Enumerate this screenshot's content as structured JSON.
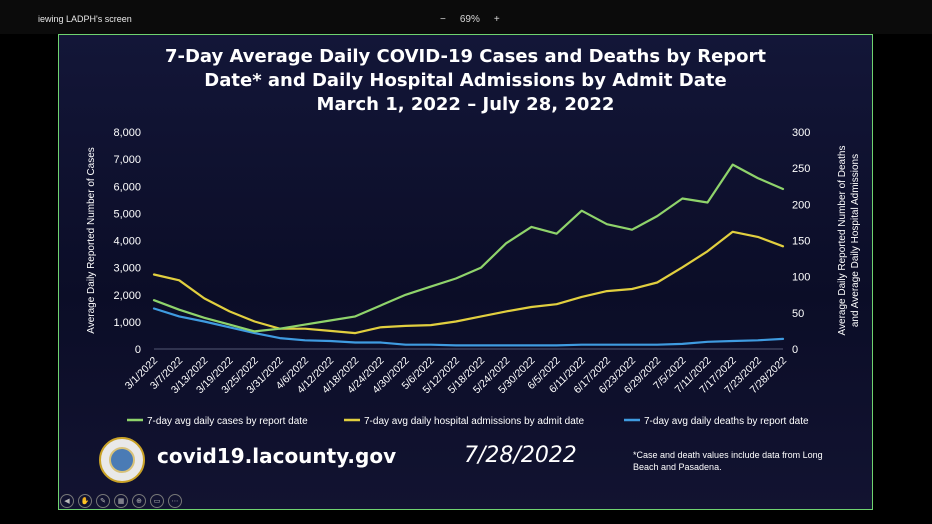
{
  "share_bar": {
    "label": "iewing LADPH's screen",
    "zoom_minus": "−",
    "zoom_level": "69%",
    "zoom_plus": "+"
  },
  "slide": {
    "title_line1": "7-Day Average Daily COVID-19 Cases and Deaths by Report",
    "title_line2": "Date* and Daily Hospital Admissions by Admit Date",
    "title_line3": "March 1, 2022 – July 28, 2022",
    "website": "covid19.lacounty.gov",
    "date": "7/28/2022",
    "footnote": "*Case and death values include data from Long Beach and Pasadena."
  },
  "colors": {
    "cases": "#8fd36b",
    "admissions": "#e1cf3f",
    "deaths": "#3f9be0",
    "axis_text": "#ffffff",
    "background": "#0d0f2c",
    "border": "#6fd36f"
  },
  "chart_data": {
    "type": "line",
    "x": [
      "3/1/2022",
      "3/7/2022",
      "3/13/2022",
      "3/19/2022",
      "3/25/2022",
      "3/31/2022",
      "4/6/2022",
      "4/12/2022",
      "4/18/2022",
      "4/24/2022",
      "4/30/2022",
      "5/6/2022",
      "5/12/2022",
      "5/18/2022",
      "5/24/2022",
      "5/30/2022",
      "6/5/2022",
      "6/11/2022",
      "6/17/2022",
      "6/23/2022",
      "6/29/2022",
      "7/5/2022",
      "7/11/2022",
      "7/17/2022",
      "7/23/2022",
      "7/28/2022"
    ],
    "left_axis": {
      "label": "Average Daily Reported Number of Cases",
      "ticks": [
        "0",
        "1,000",
        "2,000",
        "3,000",
        "4,000",
        "5,000",
        "6,000",
        "7,000",
        "8,000"
      ],
      "range": [
        0,
        8000
      ]
    },
    "right_axis": {
      "label_line1": "Average Daily Reported Number of Deaths",
      "label_line2": "and Average Daily Hospital Admissions",
      "ticks": [
        "0",
        "50",
        "100",
        "150",
        "200",
        "250",
        "300"
      ],
      "range": [
        0,
        300
      ]
    },
    "series": [
      {
        "name": "7-day avg daily cases by report date",
        "axis": "left",
        "values": [
          1800,
          1450,
          1150,
          900,
          650,
          750,
          900,
          1050,
          1200,
          1600,
          2000,
          2300,
          2600,
          3000,
          3900,
          4500,
          4250,
          5100,
          4600,
          4400,
          4900,
          5550,
          5400,
          6800,
          6300,
          5900
        ]
      },
      {
        "name": "7-day avg daily hospital admissions by admit date",
        "axis": "right",
        "values": [
          103,
          95,
          70,
          52,
          38,
          28,
          28,
          25,
          22,
          30,
          32,
          33,
          38,
          45,
          52,
          58,
          62,
          72,
          80,
          83,
          92,
          113,
          135,
          162,
          155,
          142
        ]
      },
      {
        "name": "7-day avg daily deaths by report date",
        "axis": "right",
        "values": [
          56,
          45,
          38,
          30,
          22,
          15,
          12,
          11,
          9,
          9,
          6,
          6,
          5,
          5,
          5,
          5,
          5,
          6,
          6,
          6,
          6,
          7,
          10,
          11,
          12,
          14
        ]
      }
    ]
  }
}
